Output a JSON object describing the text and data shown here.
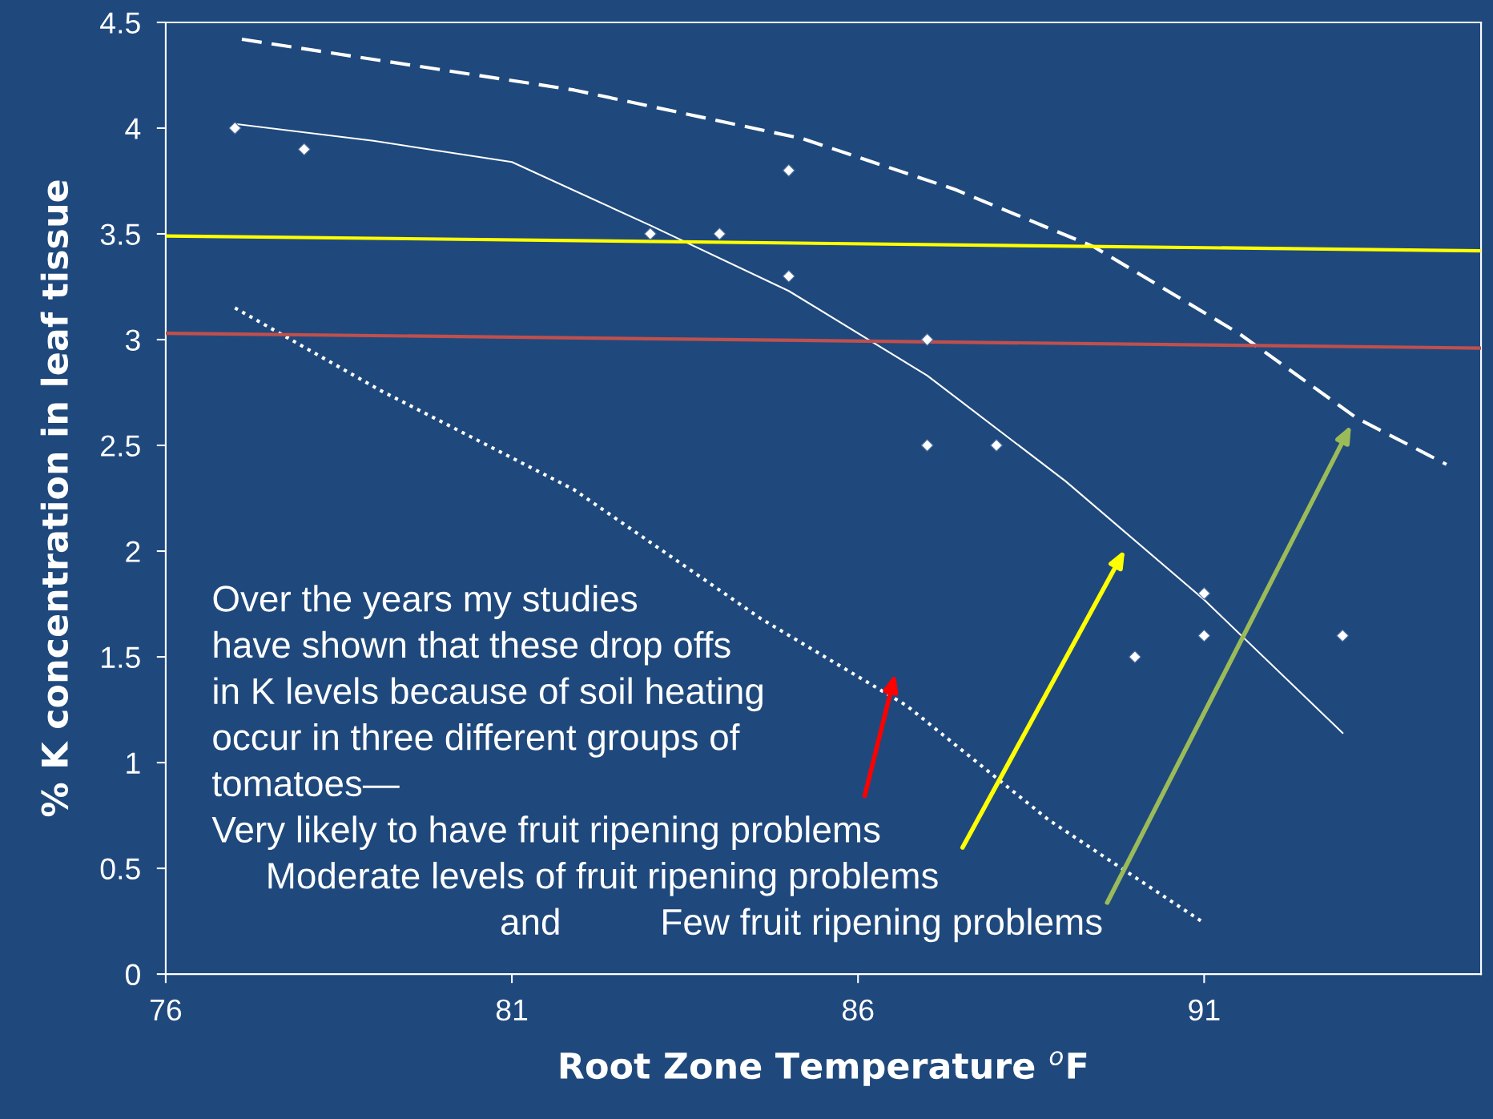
{
  "chart_data": {
    "type": "scatter",
    "xlabel": "Root Zone Temperature $^{o}$F",
    "ylabel": "% K concentration in leaf tissue",
    "xlim": [
      76,
      95
    ],
    "xticks": [
      76,
      81,
      86,
      91
    ],
    "ylim": [
      0,
      4.5
    ],
    "yticks": [
      0,
      0.5,
      1,
      1.5,
      2,
      2.5,
      3,
      3.5,
      4,
      4.5
    ],
    "grid": false,
    "legend": false,
    "series": [
      {
        "color": "#ffffff",
        "marker": "diamond",
        "x": [
          77,
          78,
          83,
          84,
          85,
          85,
          87,
          87,
          88,
          90,
          91,
          91,
          93
        ],
        "values": [
          4.0,
          3.9,
          3.5,
          3.5,
          3.8,
          3.3,
          3.0,
          2.5,
          2.5,
          1.5,
          1.8,
          1.6,
          1.6
        ]
      },
      {
        "type": "line",
        "color": "#ffffff",
        "line_style": "solid",
        "marker": "none",
        "x": [
          77,
          79,
          81,
          83,
          85,
          87,
          89,
          91,
          93
        ],
        "values": [
          4.02,
          3.94,
          3.84,
          3.54,
          3.23,
          2.83,
          2.33,
          1.77,
          1.14
        ]
      },
      {
        "type": "line",
        "color": "#ffffff",
        "line_style": "dashed",
        "marker": "none",
        "x": [
          77.1,
          81.9,
          85.2,
          87.4,
          89.4,
          91.5,
          93.2,
          94.5
        ],
        "values": [
          4.42,
          4.18,
          3.95,
          3.71,
          3.44,
          3.03,
          2.63,
          2.41
        ]
      },
      {
        "type": "line",
        "color": "#ffffff",
        "line_style": "dotted",
        "marker": "none",
        "x": [
          77.0,
          79.1,
          81.9,
          84.6,
          86.7,
          88.75,
          90.96
        ],
        "values": [
          3.15,
          2.76,
          2.29,
          1.68,
          1.27,
          0.73,
          0.25
        ]
      },
      {
        "type": "line",
        "color": "#ffff00",
        "line_style": "solid",
        "marker": "none",
        "x": [
          76,
          95
        ],
        "values": [
          3.49,
          3.42
        ]
      },
      {
        "type": "line",
        "color": "#c0504d",
        "line_style": "solid",
        "marker": "none",
        "x": [
          76,
          95
        ],
        "values": [
          3.03,
          2.96
        ]
      }
    ],
    "annotations": [
      "Over the years my studies",
      "have shown that these drop offs",
      "in K levels because of soil heating",
      "occur in three different groups of",
      "tomatoes—",
      "Very likely to have fruit ripening problems",
      "Moderate levels of fruit ripening problems",
      "and",
      "Few fruit ripening problems"
    ]
  }
}
